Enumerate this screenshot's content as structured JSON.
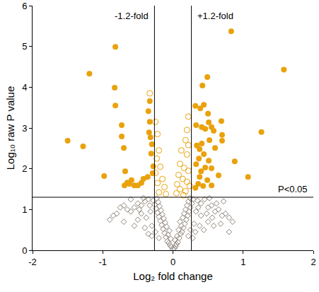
{
  "chart_data": {
    "type": "scatter",
    "x_label": "Log₂ fold change",
    "y_label": "Log₁₀ raw P value",
    "xlim": [
      -2,
      2
    ],
    "xticks": [
      -2,
      -1,
      0,
      1,
      2
    ],
    "ylim": [
      0,
      6
    ],
    "yticks": [
      0,
      1,
      2,
      3,
      4,
      5,
      6
    ],
    "grid": false,
    "vlines": [
      {
        "value": -0.263,
        "label": "-1.2-fold"
      },
      {
        "value": 0.263,
        "label": "+1.2-fold"
      }
    ],
    "hline": {
      "value": 1.301,
      "label": "P<0.05"
    },
    "series": [
      {
        "color": "#8c8279",
        "marker": "diamond-open",
        "x": [
          0,
          0.02,
          -0.02,
          0.04,
          -0.04,
          0.05,
          -0.06,
          0.07,
          -0.08,
          0.03,
          -0.03,
          0.09,
          -0.1,
          0.06,
          -0.07,
          0.11,
          -0.12,
          0.13,
          -0.05,
          0.08,
          -0.14,
          0.15,
          -0.09,
          0.12,
          -0.16,
          0.17,
          -0.11,
          0.1,
          -0.18,
          0.19,
          -0.13,
          0.14,
          -0.2,
          0.21,
          -0.15,
          0.16,
          -0.22,
          0.23,
          -0.17,
          0.18,
          -0.24,
          0.25,
          -0.19,
          0.2,
          -0.26,
          0.27,
          -0.21,
          0.22,
          -0.28,
          0.29,
          -0.23,
          0.24,
          -0.35,
          -0.4,
          -0.45,
          -0.5,
          -0.55,
          -0.6,
          -0.65,
          -0.7,
          -0.75,
          -0.8,
          -0.85,
          -0.7,
          -0.9,
          -0.5,
          -0.45,
          -0.38,
          -0.32,
          -0.3,
          -0.4,
          -0.55,
          -0.25,
          -0.35,
          -0.2,
          -0.3,
          -0.6,
          -0.42,
          -0.33,
          -0.48,
          0.35,
          0.4,
          0.45,
          0.5,
          0.55,
          0.6,
          0.65,
          0.7,
          0.75,
          0.8,
          0.85,
          0.72,
          0.62,
          0.48,
          0.4,
          0.33,
          0.3,
          0.38,
          0.5,
          0.56,
          0.25,
          0.32,
          0.22,
          0.28,
          0.58,
          0.44,
          0.36,
          0.52,
          0.68,
          0.8
        ],
        "y": [
          0.02,
          0.05,
          0.08,
          0.1,
          0.12,
          0.15,
          0.18,
          0.2,
          0.22,
          0.25,
          0.28,
          0.3,
          0.32,
          0.35,
          0.38,
          0.4,
          0.42,
          0.45,
          0.48,
          0.5,
          0.52,
          0.55,
          0.58,
          0.6,
          0.62,
          0.65,
          0.68,
          0.7,
          0.72,
          0.75,
          0.78,
          0.8,
          0.82,
          0.85,
          0.88,
          0.9,
          0.92,
          0.95,
          0.98,
          1.0,
          1.02,
          1.05,
          1.08,
          1.1,
          1.12,
          1.15,
          1.18,
          1.2,
          1.22,
          1.25,
          1.27,
          1.28,
          1.25,
          1.2,
          1.1,
          1.15,
          1.05,
          0.95,
          1.0,
          1.1,
          1.05,
          0.9,
          0.85,
          0.7,
          0.75,
          0.75,
          0.9,
          0.8,
          0.95,
          0.6,
          0.55,
          0.6,
          0.45,
          0.4,
          0.3,
          0.35,
          1.25,
          1.28,
          1.1,
          1.0,
          1.22,
          1.15,
          1.25,
          1.05,
          1.1,
          0.95,
          1.0,
          0.85,
          0.9,
          0.8,
          0.7,
          1.2,
          1.15,
          0.9,
          0.85,
          0.95,
          0.65,
          0.6,
          0.7,
          0.8,
          0.5,
          0.45,
          0.35,
          0.3,
          0.6,
          0.5,
          1.05,
          1.28,
          0.65,
          0.45
        ]
      },
      {
        "color": "#e9a20c",
        "marker": "circle-open",
        "x": [
          -0.33,
          -0.25,
          -0.22,
          -0.2,
          -0.23,
          -0.18,
          -0.25,
          -0.15,
          -0.22,
          -0.12,
          -0.2,
          -0.1,
          0.22,
          0.2,
          0.18,
          0.22,
          0.12,
          0.2,
          0.1,
          0.16,
          0.22,
          0.08,
          0.14,
          0.2,
          0.06,
          0.24,
          0.1,
          0.18,
          0.05,
          0.15
        ],
        "y": [
          3.85,
          3.15,
          2.85,
          2.45,
          2.25,
          2.05,
          1.9,
          1.75,
          1.65,
          1.55,
          1.42,
          1.38,
          3.28,
          2.95,
          2.7,
          2.58,
          2.45,
          2.35,
          2.12,
          2.02,
          1.95,
          1.85,
          1.75,
          1.68,
          1.62,
          1.58,
          1.5,
          1.45,
          1.4,
          1.35
        ]
      },
      {
        "color": "#e9a20c",
        "marker": "circle",
        "x": [
          -0.82,
          -1.19,
          -0.83,
          -0.82,
          -1.5,
          -1.28,
          -0.98,
          -0.73,
          -0.73,
          -0.7,
          -0.68,
          -0.65,
          -0.69,
          -0.33,
          -0.35,
          -0.33,
          -0.34,
          -0.32,
          -0.3,
          -0.31,
          -0.28,
          -0.29,
          -0.36,
          -0.45,
          -0.5,
          -0.55,
          -0.62,
          -0.42,
          -0.59,
          1.58,
          0.83,
          0.49,
          0.42,
          0.32,
          0.44,
          0.39,
          0.5,
          0.51,
          0.33,
          0.41,
          0.46,
          0.55,
          0.69,
          0.58,
          0.7,
          1.26,
          0.7,
          0.52,
          0.41,
          0.34,
          0.6,
          0.38,
          0.44,
          0.88,
          0.51,
          0.37,
          0.33,
          0.46,
          0.55,
          0.4,
          0.65,
          1.07,
          0.38,
          0.49,
          0.36,
          0.43,
          0.32,
          0.55
        ],
        "y": [
          4.99,
          4.33,
          3.99,
          3.55,
          2.69,
          2.55,
          1.82,
          3.07,
          2.79,
          2.51,
          1.94,
          1.66,
          1.59,
          3.66,
          3.41,
          3.15,
          2.89,
          2.77,
          2.6,
          2.37,
          2.06,
          1.89,
          1.8,
          1.65,
          1.59,
          1.59,
          1.63,
          1.75,
          1.72,
          4.43,
          5.37,
          4.25,
          4.04,
          3.54,
          3.57,
          3.48,
          3.35,
          3.14,
          3.07,
          3.02,
          2.98,
          3.02,
          3.17,
          2.93,
          2.83,
          2.9,
          2.69,
          2.7,
          2.62,
          2.57,
          2.51,
          2.48,
          2.36,
          2.18,
          2.2,
          2.25,
          2.11,
          2.03,
          2.01,
          1.94,
          1.84,
          1.8,
          1.8,
          1.72,
          1.63,
          1.58,
          1.53,
          1.59
        ]
      }
    ]
  }
}
